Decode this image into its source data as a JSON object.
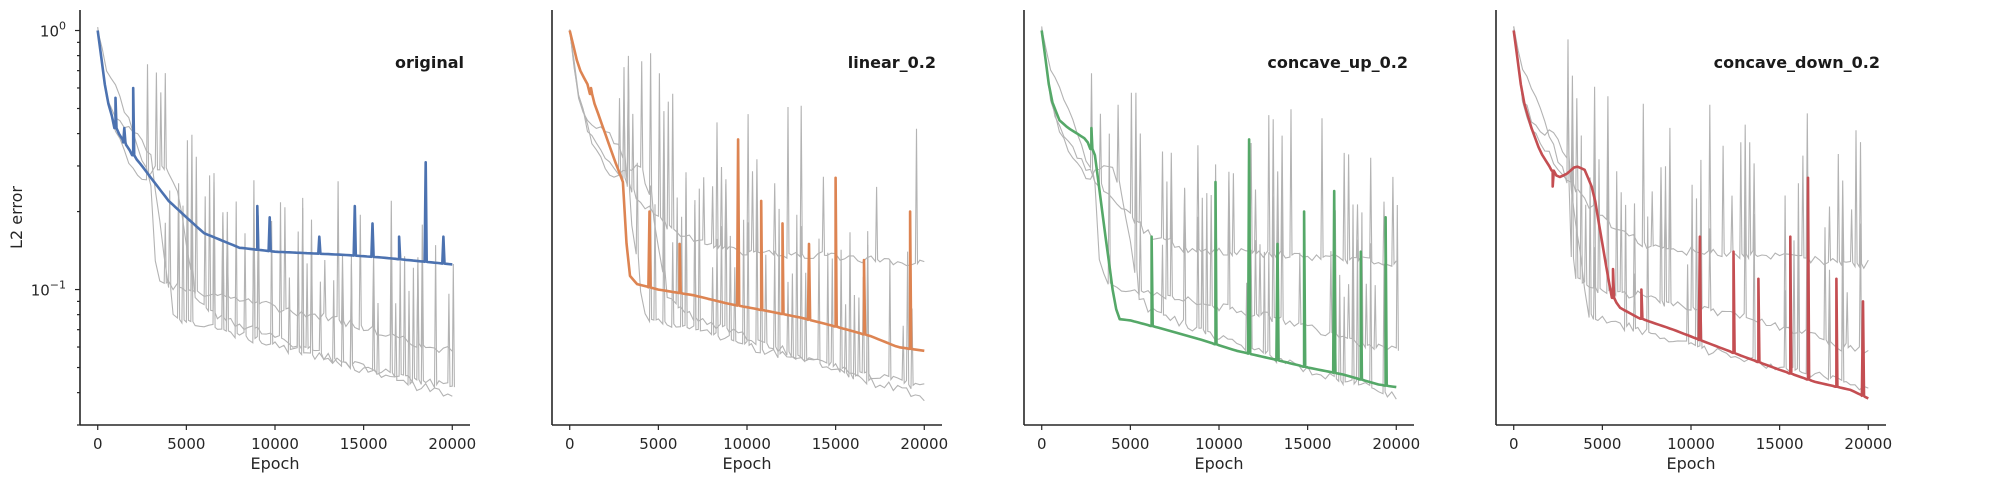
{
  "chart_data": [
    {
      "type": "line",
      "title": "original",
      "xlabel": "Epoch",
      "ylabel": "L2 error",
      "yscale": "log",
      "xlim": [
        -1000,
        21000
      ],
      "ylim": [
        0.03,
        1.2
      ],
      "xticks": [
        "0",
        "5000",
        "10000",
        "15000",
        "20000"
      ],
      "yticks": [
        {
          "base": "10",
          "exp": "0"
        },
        {
          "base": "10",
          "exp": "−1"
        }
      ],
      "highlight": "original",
      "color": "#4c72b0",
      "grid": false
    },
    {
      "type": "line",
      "title": "linear_0.2",
      "xlabel": "Epoch",
      "ylabel": "",
      "yscale": "log",
      "xlim": [
        -1000,
        21000
      ],
      "ylim": [
        0.03,
        1.2
      ],
      "xticks": [
        "0",
        "5000",
        "10000",
        "15000",
        "20000"
      ],
      "highlight": "linear_0.2",
      "color": "#dd8452",
      "grid": false
    },
    {
      "type": "line",
      "title": "concave_up_0.2",
      "xlabel": "Epoch",
      "ylabel": "",
      "yscale": "log",
      "xlim": [
        -1000,
        21000
      ],
      "ylim": [
        0.03,
        1.2
      ],
      "xticks": [
        "0",
        "5000",
        "10000",
        "15000",
        "20000"
      ],
      "highlight": "concave_up_0.2",
      "color": "#55a868",
      "grid": false
    },
    {
      "type": "line",
      "title": "concave_down_0.2",
      "xlabel": "Epoch",
      "ylabel": "",
      "yscale": "log",
      "xlim": [
        -1000,
        21000
      ],
      "ylim": [
        0.03,
        1.2
      ],
      "xticks": [
        "0",
        "5000",
        "10000",
        "15000",
        "20000"
      ],
      "highlight": "concave_down_0.2",
      "color": "#c44e52",
      "grid": false
    }
  ],
  "runs": {
    "original": {
      "x": [
        0,
        500,
        1000,
        1500,
        2000,
        2500,
        3000,
        4000,
        5000,
        6000,
        8000,
        10000,
        12000,
        14000,
        16000,
        18000,
        20000
      ],
      "y": [
        1.0,
        0.55,
        0.42,
        0.37,
        0.33,
        0.3,
        0.27,
        0.22,
        0.19,
        0.165,
        0.145,
        0.14,
        0.138,
        0.136,
        0.133,
        0.129,
        0.125
      ],
      "spikes": [
        [
          1000,
          0.55
        ],
        [
          1500,
          0.42
        ],
        [
          2000,
          0.6
        ],
        [
          9000,
          0.21
        ],
        [
          9700,
          0.19
        ],
        [
          12500,
          0.16
        ],
        [
          14500,
          0.21
        ],
        [
          15500,
          0.18
        ],
        [
          17000,
          0.16
        ],
        [
          18500,
          0.31
        ],
        [
          19500,
          0.16
        ]
      ]
    },
    "linear_0.2": {
      "x": [
        0,
        500,
        1000,
        1500,
        2000,
        2500,
        3000,
        3300,
        3800,
        5000,
        7000,
        9000,
        11000,
        13000,
        15000,
        17000,
        18500,
        20000
      ],
      "y": [
        1.0,
        0.72,
        0.62,
        0.5,
        0.4,
        0.32,
        0.26,
        0.115,
        0.105,
        0.1,
        0.095,
        0.088,
        0.083,
        0.078,
        0.072,
        0.066,
        0.06,
        0.058
      ],
      "spikes": [
        [
          1200,
          0.6
        ],
        [
          4500,
          0.2
        ],
        [
          6200,
          0.15
        ],
        [
          9500,
          0.38
        ],
        [
          10800,
          0.22
        ],
        [
          12000,
          0.18
        ],
        [
          13500,
          0.15
        ],
        [
          15000,
          0.27
        ],
        [
          16600,
          0.13
        ],
        [
          19200,
          0.2
        ]
      ]
    },
    "concave_up_0.2": {
      "x": [
        0,
        500,
        1000,
        1500,
        2000,
        2500,
        3000,
        3500,
        4000,
        4300,
        5000,
        7000,
        9000,
        11000,
        13000,
        15000,
        17000,
        19000,
        20000
      ],
      "y": [
        1.0,
        0.55,
        0.45,
        0.42,
        0.4,
        0.38,
        0.33,
        0.18,
        0.1,
        0.077,
        0.076,
        0.07,
        0.064,
        0.058,
        0.054,
        0.05,
        0.047,
        0.043,
        0.042
      ],
      "spikes": [
        [
          2800,
          0.42
        ],
        [
          6200,
          0.16
        ],
        [
          9800,
          0.26
        ],
        [
          11700,
          0.38
        ],
        [
          13300,
          0.15
        ],
        [
          14800,
          0.2
        ],
        [
          16500,
          0.24
        ],
        [
          18000,
          0.14
        ],
        [
          19400,
          0.19
        ]
      ]
    },
    "concave_down_0.2": {
      "x": [
        0,
        500,
        1000,
        1500,
        2000,
        2500,
        3000,
        3500,
        4000,
        4500,
        5000,
        5500,
        6000,
        7000,
        9000,
        11000,
        13000,
        15000,
        17000,
        19000,
        20000
      ],
      "y": [
        1.0,
        0.55,
        0.42,
        0.34,
        0.3,
        0.27,
        0.28,
        0.3,
        0.29,
        0.24,
        0.15,
        0.095,
        0.085,
        0.078,
        0.07,
        0.062,
        0.055,
        0.049,
        0.044,
        0.041,
        0.038
      ],
      "spikes": [
        [
          2200,
          0.25
        ],
        [
          5600,
          0.12
        ],
        [
          7200,
          0.1
        ],
        [
          10500,
          0.16
        ],
        [
          12400,
          0.14
        ],
        [
          13800,
          0.11
        ],
        [
          15600,
          0.16
        ],
        [
          16600,
          0.27
        ],
        [
          18200,
          0.11
        ],
        [
          19700,
          0.09
        ]
      ]
    }
  }
}
